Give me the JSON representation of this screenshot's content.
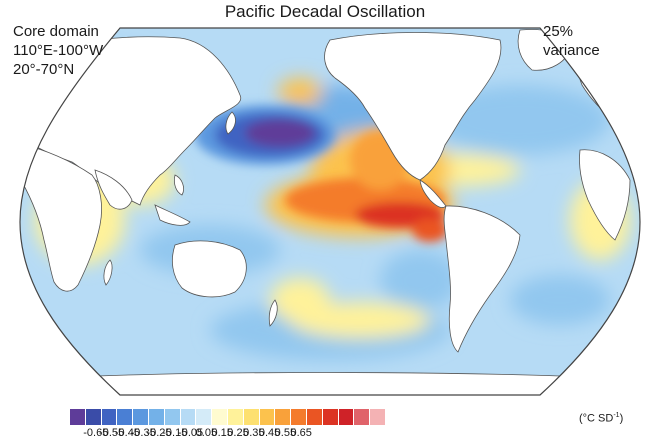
{
  "title": "Pacific Decadal Oscillation",
  "annotation_left": [
    "Core domain",
    "110°E-100°W",
    "20°-70°N"
  ],
  "annotation_right": [
    "25%",
    "variance"
  ],
  "colorbar": {
    "unit_prefix": "(°C SD",
    "unit_exponent": "-1",
    "unit_suffix": ")",
    "tick_labels": [
      "-0.65",
      "-0.55",
      "-0.45",
      "-0.35",
      "-0.25",
      "-0.15",
      "-0.05",
      "0.05",
      "0.15",
      "0.25",
      "0.35",
      "0.45",
      "0.55",
      "0.65"
    ],
    "colors": [
      "#5e3c99",
      "#3a4ca8",
      "#3f63c2",
      "#4a7fd4",
      "#5b98df",
      "#73b1e8",
      "#92c7ef",
      "#b6dbf5",
      "#d4ebf8",
      "#fffbd0",
      "#fff29a",
      "#fde070",
      "#fcc24d",
      "#f9a13a",
      "#f47b2c",
      "#ea5523",
      "#dc3323",
      "#cf2228",
      "#e0636a",
      "#f4b2b4"
    ]
  },
  "map": {
    "projection": "robinson",
    "colors": {
      "ocean_base": "#b6dbf5",
      "land": "#ffffff",
      "coast": "#555555",
      "border": "#444444"
    }
  }
}
